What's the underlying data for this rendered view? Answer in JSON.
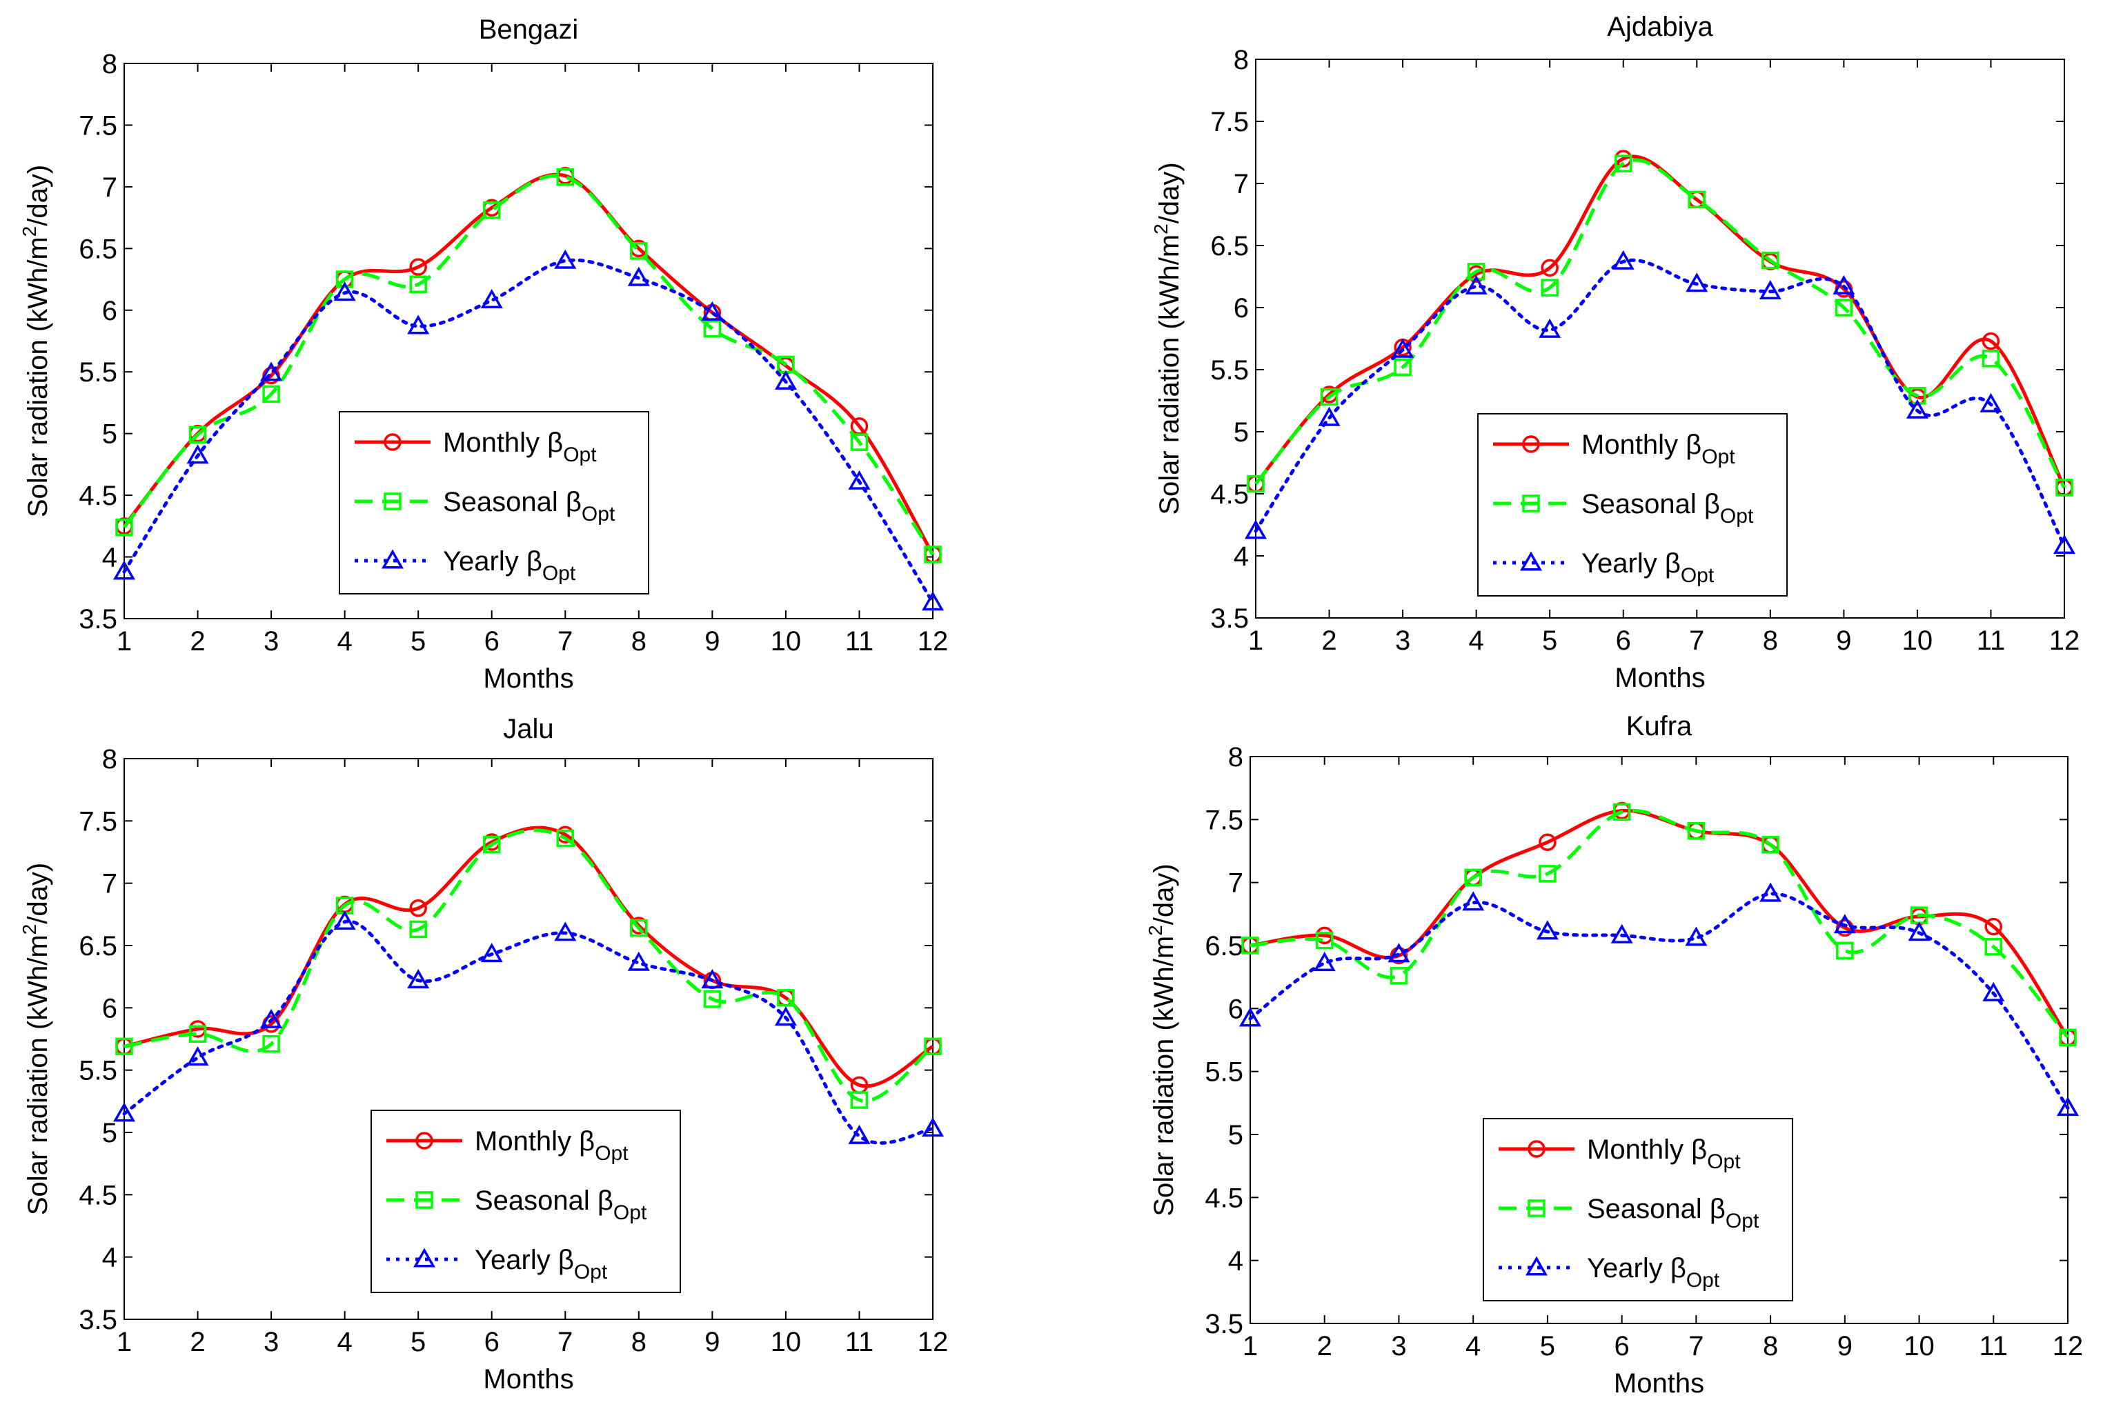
{
  "chart_data": [
    {
      "type": "line",
      "title": "Bengazi",
      "xlabel": "Months",
      "ylabel": "Solar radiation (kWh/m2/day)",
      "x": [
        1,
        2,
        3,
        4,
        5,
        6,
        7,
        8,
        9,
        10,
        11,
        12
      ],
      "xlim": [
        1,
        12
      ],
      "ylim": [
        3.5,
        8
      ],
      "yticks": [
        "3.5",
        "4",
        "4.5",
        "5",
        "5.5",
        "6",
        "6.5",
        "7",
        "7.5",
        "8"
      ],
      "legend_position": "lower-center",
      "grid": false,
      "series": [
        {
          "name": "Monthly βOpt",
          "color": "#ff0000",
          "marker": "circle",
          "line": "solid",
          "values": [
            4.25,
            5.0,
            5.47,
            6.25,
            6.35,
            6.83,
            7.09,
            6.5,
            5.98,
            5.55,
            5.06,
            4.02
          ]
        },
        {
          "name": "Seasonal βOpt",
          "color": "#00ff00",
          "marker": "square",
          "line": "dashed",
          "values": [
            4.24,
            4.99,
            5.32,
            6.25,
            6.21,
            6.81,
            7.08,
            6.48,
            5.85,
            5.56,
            4.93,
            4.02
          ]
        },
        {
          "name": "Yearly βOpt",
          "color": "#0000ff",
          "marker": "triangle",
          "line": "dotted",
          "values": [
            3.88,
            4.82,
            5.49,
            6.14,
            5.87,
            6.08,
            6.4,
            6.26,
            5.98,
            5.42,
            4.61,
            3.63
          ]
        }
      ]
    },
    {
      "type": "line",
      "title": "Ajdabiya",
      "xlabel": "Months",
      "ylabel": "Solar radiation (kWh/m2/day)",
      "x": [
        1,
        2,
        3,
        4,
        5,
        6,
        7,
        8,
        9,
        10,
        11,
        12
      ],
      "xlim": [
        1,
        12
      ],
      "ylim": [
        3.5,
        8
      ],
      "yticks": [
        "3.5",
        "4",
        "4.5",
        "5",
        "5.5",
        "6",
        "6.5",
        "7",
        "7.5",
        "8"
      ],
      "legend_position": "lower-center",
      "grid": false,
      "series": [
        {
          "name": "Monthly βOpt",
          "color": "#ff0000",
          "marker": "circle",
          "line": "solid",
          "values": [
            4.58,
            5.3,
            5.68,
            6.27,
            6.32,
            7.2,
            6.87,
            6.37,
            6.15,
            5.28,
            5.73,
            4.55
          ]
        },
        {
          "name": "Seasonal βOpt",
          "color": "#00ff00",
          "marker": "square",
          "line": "dashed",
          "values": [
            4.58,
            5.28,
            5.52,
            6.29,
            6.16,
            7.16,
            6.87,
            6.38,
            6.0,
            5.29,
            5.59,
            4.55
          ]
        },
        {
          "name": "Yearly βOpt",
          "color": "#0000ff",
          "marker": "triangle",
          "line": "dotted",
          "values": [
            4.2,
            5.11,
            5.66,
            6.17,
            5.82,
            6.37,
            6.19,
            6.13,
            6.17,
            5.17,
            5.22,
            4.08
          ]
        }
      ]
    },
    {
      "type": "line",
      "title": "Jalu",
      "xlabel": "Months",
      "ylabel": "Solar radiation (kWh/m2/day)",
      "x": [
        1,
        2,
        3,
        4,
        5,
        6,
        7,
        8,
        9,
        10,
        11,
        12
      ],
      "xlim": [
        1,
        12
      ],
      "ylim": [
        3.5,
        8
      ],
      "yticks": [
        "3.5",
        "4",
        "4.5",
        "5",
        "5.5",
        "6",
        "6.5",
        "7",
        "7.5",
        "8"
      ],
      "legend_position": "lower-center",
      "grid": false,
      "series": [
        {
          "name": "Monthly βOpt",
          "color": "#ff0000",
          "marker": "circle",
          "line": "solid",
          "values": [
            5.69,
            5.83,
            5.87,
            6.83,
            6.8,
            7.33,
            7.39,
            6.66,
            6.22,
            6.08,
            5.38,
            5.69
          ]
        },
        {
          "name": "Seasonal βOpt",
          "color": "#00ff00",
          "marker": "square",
          "line": "dashed",
          "values": [
            5.69,
            5.79,
            5.71,
            6.82,
            6.63,
            7.31,
            7.36,
            6.64,
            6.07,
            6.08,
            5.26,
            5.69
          ]
        },
        {
          "name": "Yearly βOpt",
          "color": "#0000ff",
          "marker": "triangle",
          "line": "dotted",
          "values": [
            5.15,
            5.6,
            5.9,
            6.69,
            6.22,
            6.43,
            6.6,
            6.36,
            6.22,
            5.92,
            4.97,
            5.03
          ]
        }
      ]
    },
    {
      "type": "line",
      "title": "Kufra",
      "xlabel": "Months",
      "ylabel": "Solar radiation (kWh/m2/day)",
      "x": [
        1,
        2,
        3,
        4,
        5,
        6,
        7,
        8,
        9,
        10,
        11,
        12
      ],
      "xlim": [
        1,
        12
      ],
      "ylim": [
        3.5,
        8
      ],
      "yticks": [
        "3.5",
        "4",
        "4.5",
        "5",
        "5.5",
        "6",
        "6.5",
        "7",
        "7.5",
        "8"
      ],
      "legend_position": "lower-center",
      "grid": false,
      "series": [
        {
          "name": "Monthly βOpt",
          "color": "#ff0000",
          "marker": "circle",
          "line": "solid",
          "values": [
            6.5,
            6.58,
            6.42,
            7.04,
            7.32,
            7.57,
            7.41,
            7.3,
            6.64,
            6.73,
            6.65,
            5.77
          ]
        },
        {
          "name": "Seasonal βOpt",
          "color": "#00ff00",
          "marker": "square",
          "line": "dashed",
          "values": [
            6.5,
            6.54,
            6.26,
            7.04,
            7.07,
            7.56,
            7.41,
            7.3,
            6.46,
            6.74,
            6.49,
            5.77
          ]
        },
        {
          "name": "Yearly βOpt",
          "color": "#0000ff",
          "marker": "triangle",
          "line": "dotted",
          "values": [
            5.92,
            6.36,
            6.43,
            6.84,
            6.61,
            6.58,
            6.56,
            6.91,
            6.66,
            6.6,
            6.12,
            5.21
          ]
        }
      ]
    }
  ]
}
